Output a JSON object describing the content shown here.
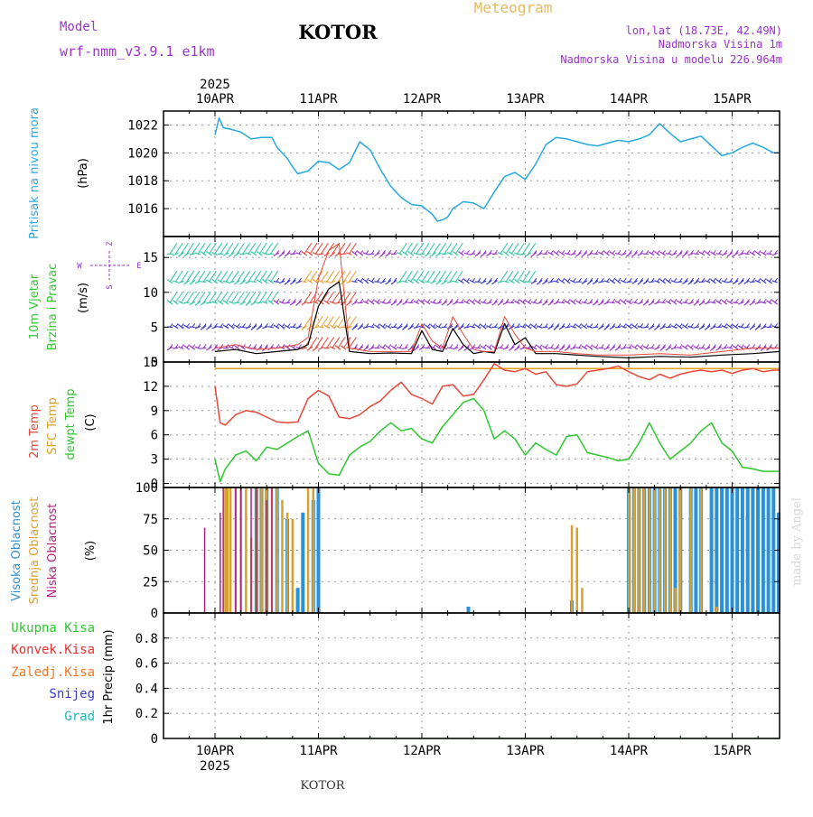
{
  "header": {
    "model_label": "Model",
    "model_name": "wrf-nmm_v3.9.1  e1km",
    "station": "KOTOR",
    "product": "Meteogram",
    "lonlat": "lon,lat (18.73E, 42.49N)",
    "elevation": "Nadmorska Visina 1m",
    "model_elevation": "Nadmorska Visina u modelu 226.964m",
    "footer_station": "KOTOR",
    "credit": "made by Angel"
  },
  "time_axis": {
    "year": "2025",
    "labels": [
      "10APR",
      "11APR",
      "12APR",
      "13APR",
      "14APR",
      "15APR"
    ]
  },
  "colors": {
    "pressure": "#29a9e0",
    "temp2m": "#e8473a",
    "sfc": "#e0a020",
    "dewpt": "#2ec82e",
    "high_cloud": "#2a90d8",
    "mid_cloud": "#d9a030",
    "low_cloud": "#b0207a",
    "purple": "#9933cc",
    "total_precip": "#2ec82e",
    "conv_precip": "#e83030",
    "frozen_precip": "#f07828",
    "snow": "#3a3ad0",
    "hail": "#22b8b8"
  },
  "panels": {
    "pressure": {
      "label1": "Pritisak na nivou mora",
      "unit": "(hPa)"
    },
    "wind": {
      "label1": "10m Vjetar",
      "label2": "Brzina i Pravac",
      "unit": "(m/s)",
      "compass_n": "Z",
      "compass_s": "S",
      "compass_w": "W",
      "compass_e": "E"
    },
    "temp": {
      "label1": "2m Temp",
      "label2": "SFC Temp",
      "label3": "dewpt Temp",
      "unit": "(C)"
    },
    "cloud": {
      "label1": "Visoka Oblacnost",
      "label2": "Srednja Oblacnost",
      "label3": "Niska Oblacnost",
      "unit": "(%)"
    },
    "precip": {
      "labels": [
        "Ukupna Kisa",
        "Konvek.Kisa",
        "Zaledj.Kisa",
        "Snijeg",
        "Grad"
      ],
      "axis_label": "1hr Precip (mm)"
    }
  },
  "chart_data": [
    {
      "type": "line",
      "name": "pressure",
      "ylabel": "(hPa)",
      "ylim": [
        1014,
        1023
      ],
      "yticks": [
        1016,
        1018,
        1020,
        1022
      ],
      "x_days": [
        0,
        0.04,
        0.08,
        0.15,
        0.25,
        0.35,
        0.45,
        0.55,
        0.6,
        0.7,
        0.75,
        0.8,
        0.9,
        1.0,
        1.1,
        1.2,
        1.3,
        1.4,
        1.5,
        1.6,
        1.7,
        1.8,
        1.9,
        2.0,
        2.1,
        2.15,
        2.2,
        2.25,
        2.3,
        2.4,
        2.5,
        2.6,
        2.7,
        2.8,
        2.9,
        3.0,
        3.1,
        3.2,
        3.3,
        3.4,
        3.5,
        3.6,
        3.7,
        3.8,
        3.9,
        4.0,
        4.1,
        4.2,
        4.3,
        4.4,
        4.5,
        4.6,
        4.7,
        4.8,
        4.9,
        5.0,
        5.1,
        5.2,
        5.3,
        5.4,
        5.5,
        5.55
      ],
      "values": [
        1021.3,
        1022.5,
        1021.8,
        1021.7,
        1021.5,
        1021.0,
        1021.1,
        1021.1,
        1020.4,
        1019.6,
        1019.0,
        1018.5,
        1018.7,
        1019.4,
        1019.3,
        1018.8,
        1019.3,
        1020.8,
        1020.2,
        1018.8,
        1017.6,
        1016.8,
        1016.3,
        1016.2,
        1015.6,
        1015.1,
        1015.2,
        1015.4,
        1016.0,
        1016.5,
        1016.4,
        1016.0,
        1017.2,
        1018.3,
        1018.6,
        1018.1,
        1019.2,
        1020.6,
        1021.1,
        1021.0,
        1020.8,
        1020.6,
        1020.5,
        1020.7,
        1020.9,
        1020.8,
        1021.0,
        1021.3,
        1022.1,
        1021.4,
        1020.8,
        1021.0,
        1021.2,
        1020.5,
        1019.8,
        1020.0,
        1020.4,
        1020.7,
        1020.4,
        1020.0,
        1020.0,
        1020.0
      ]
    },
    {
      "type": "line",
      "name": "wind",
      "ylabel": "(m/s)",
      "ylim": [
        0,
        18
      ],
      "yticks": [
        0,
        5,
        10,
        15
      ],
      "series": [
        {
          "name": "speed",
          "x_days": [
            0,
            0.2,
            0.4,
            0.6,
            0.8,
            0.9,
            1.0,
            1.1,
            1.2,
            1.3,
            1.5,
            1.7,
            1.9,
            2.0,
            2.1,
            2.2,
            2.3,
            2.4,
            2.5,
            2.6,
            2.7,
            2.8,
            2.9,
            3.0,
            3.1,
            3.3,
            3.5,
            3.7,
            4.0,
            4.3,
            4.6,
            4.9,
            5.2,
            5.55
          ],
          "values": [
            1.5,
            1.8,
            1.2,
            1.5,
            1.8,
            2.5,
            8.0,
            10.5,
            11.5,
            1.5,
            1.2,
            1.3,
            1.2,
            4.5,
            1.8,
            1.5,
            4.8,
            2.5,
            1.2,
            1.5,
            1.3,
            5.5,
            2.5,
            3.5,
            1.2,
            1.2,
            1.0,
            0.8,
            0.6,
            0.8,
            0.7,
            1.0,
            1.2,
            1.5
          ]
        },
        {
          "name": "gust",
          "x_days": [
            0,
            0.2,
            0.4,
            0.6,
            0.8,
            0.9,
            1.0,
            1.1,
            1.2,
            1.3,
            1.5,
            1.7,
            1.9,
            2.0,
            2.1,
            2.2,
            2.3,
            2.4,
            2.5,
            2.6,
            2.7,
            2.8,
            2.9,
            3.0,
            3.1,
            3.3,
            3.5,
            3.7,
            4.0,
            4.3,
            4.6,
            4.9,
            5.2,
            5.55
          ],
          "values": [
            2.0,
            2.5,
            1.8,
            2.0,
            2.5,
            3.5,
            12.0,
            16.0,
            17.0,
            2.0,
            1.5,
            1.5,
            1.5,
            5.5,
            3.0,
            2.0,
            6.5,
            4.0,
            1.8,
            1.5,
            1.5,
            6.5,
            4.0,
            2.0,
            1.5,
            1.5,
            1.2,
            1.0,
            1.0,
            1.2,
            1.0,
            1.5,
            2.0,
            2.0
          ]
        }
      ]
    },
    {
      "type": "line",
      "name": "temperature",
      "ylabel": "(C)",
      "ylim": [
        -0.5,
        15
      ],
      "yticks": [
        0,
        3,
        6,
        9,
        12,
        15
      ],
      "series": [
        {
          "name": "2m Temp",
          "x_days": [
            0,
            0.05,
            0.1,
            0.2,
            0.3,
            0.4,
            0.5,
            0.6,
            0.7,
            0.8,
            0.9,
            1.0,
            1.1,
            1.2,
            1.3,
            1.4,
            1.5,
            1.6,
            1.7,
            1.8,
            1.9,
            2.0,
            2.1,
            2.2,
            2.3,
            2.4,
            2.5,
            2.6,
            2.7,
            2.8,
            2.9,
            3.0,
            3.1,
            3.2,
            3.3,
            3.4,
            3.5,
            3.6,
            3.7,
            3.8,
            3.9,
            4.0,
            4.1,
            4.2,
            4.3,
            4.4,
            4.5,
            4.6,
            4.7,
            4.8,
            4.9,
            5.0,
            5.1,
            5.2,
            5.3,
            5.4,
            5.55
          ],
          "values": [
            12,
            7.5,
            7.2,
            8.5,
            9.0,
            8.8,
            8.2,
            7.6,
            7.5,
            7.6,
            10.5,
            11.5,
            10.8,
            8.2,
            8.0,
            8.5,
            9.5,
            10.2,
            11.5,
            12.5,
            11.0,
            10.5,
            9.8,
            12.0,
            12.2,
            10.8,
            11.0,
            12.8,
            14.8,
            14.0,
            13.8,
            14.2,
            13.5,
            13.8,
            12.2,
            12.0,
            12.3,
            13.8,
            14.0,
            14.2,
            14.5,
            13.8,
            13.2,
            12.8,
            13.5,
            13.0,
            13.5,
            13.8,
            14.0,
            13.8,
            14.0,
            13.6,
            14.0,
            14.2,
            13.8,
            14.0,
            14.0
          ]
        },
        {
          "name": "SFC Temp",
          "x_days": [
            0,
            5.55
          ],
          "values": [
            14.2,
            14.2
          ]
        },
        {
          "name": "dewpt Temp",
          "x_days": [
            0,
            0.05,
            0.1,
            0.2,
            0.3,
            0.4,
            0.5,
            0.6,
            0.7,
            0.8,
            0.9,
            1.0,
            1.1,
            1.2,
            1.3,
            1.4,
            1.5,
            1.6,
            1.7,
            1.8,
            1.9,
            2.0,
            2.1,
            2.2,
            2.3,
            2.4,
            2.5,
            2.6,
            2.7,
            2.8,
            2.9,
            3.0,
            3.1,
            3.2,
            3.3,
            3.4,
            3.5,
            3.6,
            3.7,
            3.8,
            3.9,
            4.0,
            4.1,
            4.2,
            4.3,
            4.4,
            4.5,
            4.6,
            4.7,
            4.8,
            4.9,
            5.0,
            5.1,
            5.2,
            5.3,
            5.4,
            5.55
          ],
          "values": [
            3.0,
            0.2,
            1.8,
            3.5,
            4.0,
            2.8,
            4.5,
            4.2,
            5.0,
            5.8,
            6.5,
            2.5,
            1.2,
            1.0,
            3.5,
            4.5,
            5.2,
            6.5,
            7.5,
            6.5,
            6.8,
            5.5,
            5.0,
            7.0,
            8.5,
            10.0,
            10.5,
            9.0,
            5.5,
            6.5,
            5.5,
            3.5,
            5.0,
            4.2,
            3.5,
            5.8,
            6.0,
            3.8,
            3.5,
            3.2,
            2.8,
            3.0,
            5.0,
            7.5,
            5.0,
            3.0,
            4.0,
            5.0,
            6.5,
            7.5,
            5.0,
            4.0,
            2.0,
            1.8,
            1.5,
            1.5,
            1.5
          ]
        }
      ]
    },
    {
      "type": "bar",
      "name": "cloud_cover",
      "ylabel": "(%)",
      "ylim": [
        0,
        100
      ],
      "yticks": [
        0,
        25,
        50,
        75,
        100
      ],
      "series": [
        {
          "name": "Visoka Oblacnost",
          "x_days": [
            0.4,
            0.45,
            0.5,
            0.6,
            0.7,
            0.8,
            0.85,
            0.95,
            1.0,
            2.45,
            3.45,
            4.0,
            4.05,
            4.1,
            4.15,
            4.2,
            4.25,
            4.3,
            4.35,
            4.4,
            4.45,
            4.5,
            4.6,
            4.65,
            4.7,
            4.8,
            4.85,
            4.9,
            4.95,
            5.0,
            5.05,
            5.1,
            5.15,
            5.2,
            5.25,
            5.3,
            5.35,
            5.4,
            5.45,
            5.5
          ],
          "values": [
            100,
            100,
            100,
            100,
            75,
            20,
            80,
            90,
            100,
            5,
            10,
            100,
            100,
            100,
            100,
            100,
            100,
            100,
            100,
            100,
            100,
            100,
            100,
            100,
            100,
            100,
            100,
            100,
            100,
            100,
            100,
            100,
            100,
            100,
            100,
            100,
            100,
            100,
            80,
            100
          ]
        },
        {
          "name": "Srednja Oblacnost",
          "x_days": [
            0.1,
            0.12,
            0.15,
            0.2,
            0.25,
            0.3,
            0.35,
            0.4,
            0.45,
            0.5,
            0.55,
            0.6,
            0.65,
            0.7,
            0.75,
            0.9,
            0.95,
            3.45,
            3.5,
            3.55,
            4.0,
            4.05,
            4.1,
            4.15,
            4.2,
            4.25,
            4.3,
            4.35,
            4.4,
            4.45,
            4.5,
            4.6,
            4.7,
            4.85
          ],
          "values": [
            100,
            100,
            100,
            100,
            100,
            100,
            60,
            100,
            100,
            100,
            100,
            100,
            90,
            80,
            75,
            100,
            100,
            70,
            68,
            20,
            100,
            100,
            100,
            100,
            100,
            100,
            100,
            100,
            100,
            20,
            100,
            100,
            100,
            5
          ]
        },
        {
          "name": "Niska Oblacnost",
          "x_days": [
            -0.1,
            0.05,
            0.08,
            0.2,
            0.25,
            0.35,
            0.4,
            0.5,
            0.55
          ],
          "values": [
            68,
            80,
            100,
            100,
            100,
            100,
            100,
            90,
            100
          ]
        }
      ]
    },
    {
      "type": "line",
      "name": "precipitation",
      "ylabel": "1hr Precip (mm)",
      "ylim": [
        0,
        1
      ],
      "yticks": [
        0,
        0.2,
        0.4,
        0.6,
        0.8
      ],
      "series": [
        {
          "name": "Ukupna Kisa",
          "x_days": [
            0,
            5.55
          ],
          "values": [
            0,
            0
          ]
        }
      ]
    }
  ]
}
